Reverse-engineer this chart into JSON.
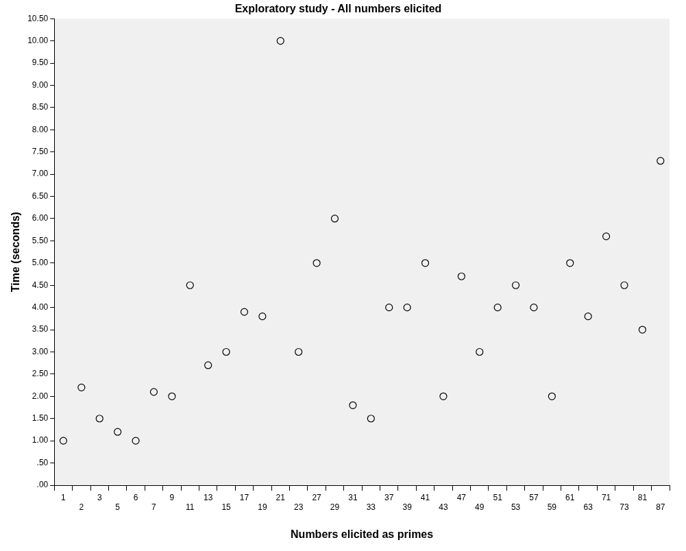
{
  "chart_data": {
    "type": "scatter",
    "title": "Exploratory study - All numbers elicited",
    "xlabel": "Numbers elicited as primes",
    "ylabel": "Time (seconds)",
    "categories": [
      "1",
      "2",
      "3",
      "5",
      "6",
      "7",
      "9",
      "11",
      "13",
      "15",
      "17",
      "19",
      "21",
      "23",
      "27",
      "29",
      "31",
      "33",
      "37",
      "39",
      "41",
      "43",
      "47",
      "49",
      "51",
      "53",
      "57",
      "59",
      "61",
      "63",
      "71",
      "73",
      "81",
      "87"
    ],
    "series": [
      {
        "color": "#000000",
        "values": [
          1.0,
          2.2,
          1.5,
          1.2,
          1.0,
          2.1,
          2.0,
          4.5,
          2.7,
          3.0,
          3.9,
          3.8,
          10.0,
          3.0,
          5.0,
          6.0,
          1.8,
          1.5,
          4.0,
          4.0,
          5.0,
          2.0,
          4.7,
          3.0,
          4.0,
          4.5,
          4.0,
          2.0,
          5.0,
          3.8,
          5.6,
          4.5,
          3.5,
          7.3
        ]
      }
    ],
    "ylim": [
      0,
      10.5
    ],
    "yticks": [
      {
        "value": 0,
        "label": ".00"
      },
      {
        "value": 0.5,
        "label": ".50"
      },
      {
        "value": 1,
        "label": "1.00"
      },
      {
        "value": 1.5,
        "label": "1.50"
      },
      {
        "value": 2,
        "label": "2.00"
      },
      {
        "value": 2.5,
        "label": "2.50"
      },
      {
        "value": 3,
        "label": "3.00"
      },
      {
        "value": 3.5,
        "label": "3.50"
      },
      {
        "value": 4,
        "label": "4.00"
      },
      {
        "value": 4.5,
        "label": "4.50"
      },
      {
        "value": 5,
        "label": "5.00"
      },
      {
        "value": 5.5,
        "label": "5.50"
      },
      {
        "value": 6,
        "label": "6.00"
      },
      {
        "value": 6.5,
        "label": "6.50"
      },
      {
        "value": 7,
        "label": "7.00"
      },
      {
        "value": 7.5,
        "label": "7.50"
      },
      {
        "value": 8,
        "label": "8.00"
      },
      {
        "value": 8.5,
        "label": "8.50"
      },
      {
        "value": 9,
        "label": "9.00"
      },
      {
        "value": 9.5,
        "label": "9.50"
      },
      {
        "value": 10,
        "label": "10.00"
      },
      {
        "value": 10.5,
        "label": "10.50"
      }
    ],
    "grid": false,
    "legend": false,
    "marker": "circle"
  }
}
